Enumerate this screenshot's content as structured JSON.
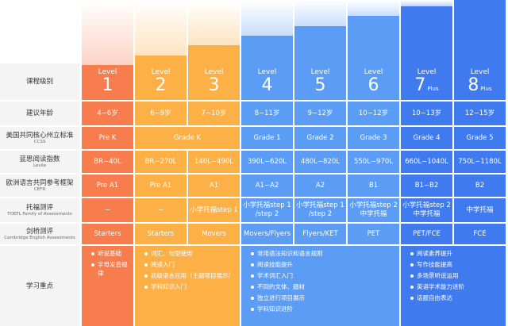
{
  "colors": {
    "red": "#F77D4F",
    "orange": "#FDB046",
    "blue": "#5B9DF5",
    "navy": "#3F7BEF",
    "label_bg": "#F4F4F4",
    "text": "#333333"
  },
  "row_labels": [
    {
      "zh": "课程级别",
      "en": ""
    },
    {
      "zh": "建议年龄",
      "en": ""
    },
    {
      "zh": "美国共同核心州立标准",
      "en": "CCSS"
    },
    {
      "zh": "蓝思阅读指数",
      "en": "Lexile"
    },
    {
      "zh": "欧洲语言共同参考框架",
      "en": "CEFR"
    },
    {
      "zh": "托福测评",
      "en": "TOEFL Family of Assessments"
    },
    {
      "zh": "剑桥测评",
      "en": "Cambridge English Assessments"
    },
    {
      "zh": "学习重点",
      "en": ""
    }
  ],
  "levels": [
    {
      "word": "Level",
      "num": "1",
      "plus": ""
    },
    {
      "word": "Level",
      "num": "2",
      "plus": ""
    },
    {
      "word": "Level",
      "num": "3",
      "plus": ""
    },
    {
      "word": "Level",
      "num": "4",
      "plus": ""
    },
    {
      "word": "Level",
      "num": "5",
      "plus": ""
    },
    {
      "word": "Level",
      "num": "6",
      "plus": ""
    },
    {
      "word": "Level",
      "num": "7",
      "plus": "Plus"
    },
    {
      "word": "Level",
      "num": "8",
      "plus": "Plus"
    }
  ],
  "ages": [
    "4−6岁",
    "6−9岁",
    "7−10岁",
    "8−11岁",
    "9−12岁",
    "10−12岁",
    "10−13岁",
    "12−15岁"
  ],
  "ccss": [
    "Pre K",
    "Grade K",
    "Grade 1",
    "Grade 2",
    "Grade 3",
    "Grade 4",
    "Grade 5"
  ],
  "lexile": [
    "BR−40L",
    "BR−270L",
    "140L−490L",
    "390L−620L",
    "480L−820L",
    "550L−970L",
    "660L−1040L",
    "750L−1180L"
  ],
  "cefr": [
    "Pre A1",
    "Pre A1",
    "A1",
    "A1−A2",
    "A2",
    "B1",
    "B1−B2",
    "B2"
  ],
  "toefl": [
    "−",
    "−",
    "小学托福step 1",
    "小学托福step 1\n/step 2",
    "小学托福step 1\n/step 2",
    "小学托福step 2\n中学托福",
    "小学托福step 2\n中学托福",
    "中学托福"
  ],
  "cambridge": [
    "Starters",
    "Starters",
    "Movers",
    "Movers/Flyers",
    "Flyers/KET",
    "PET",
    "PET/FCE",
    "FCE"
  ],
  "focus": [
    [
      "听说基础",
      "字母发音规律"
    ],
    [
      "词汇、句型使用",
      "阅读入门",
      "初级语言应用（主题项目展示）",
      "学科知识入门"
    ],
    [
      "常用语法知识和语言规则",
      "阅读技能提升",
      "学术词汇入门",
      "不同的文体、题材",
      "独立进行项目展示",
      "学科知识进阶"
    ],
    [
      "阅读素养提升",
      "写作技能提高",
      "多场景听说运用",
      "英语学术能力进阶",
      "话题自由表达"
    ]
  ]
}
